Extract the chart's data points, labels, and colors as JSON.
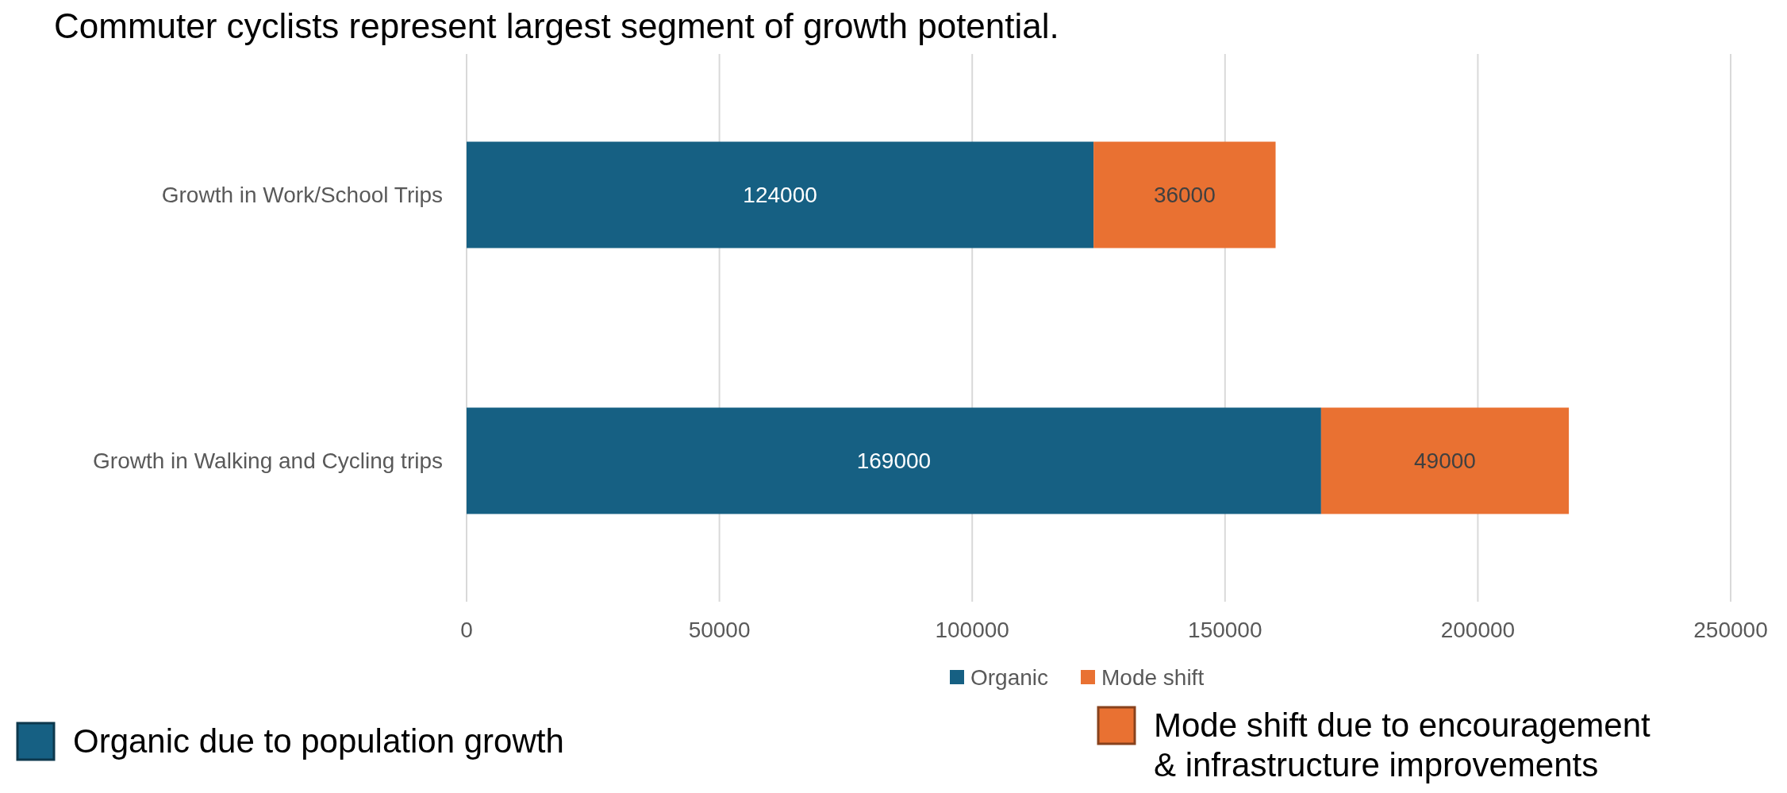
{
  "chart_data": {
    "type": "bar",
    "orientation": "horizontal",
    "stacked": true,
    "title": "Commuter cyclists represent largest segment of growth potential.",
    "categories": [
      "Growth in Work/School Trips",
      "Growth in Walking and Cycling trips"
    ],
    "series": [
      {
        "name": "Organic",
        "color": "#166083",
        "values": [
          124000,
          169000
        ]
      },
      {
        "name": "Mode shift",
        "color": "#e97132",
        "values": [
          36000,
          49000
        ]
      }
    ],
    "xlim": [
      0,
      250000
    ],
    "xticks": [
      0,
      50000,
      100000,
      150000,
      200000,
      250000
    ],
    "grid": "x",
    "legend": "bottom",
    "data_labels": true,
    "annotations": [
      "Organic due to population growth",
      "Mode shift due to encouragement & infrastructure improvements"
    ]
  }
}
